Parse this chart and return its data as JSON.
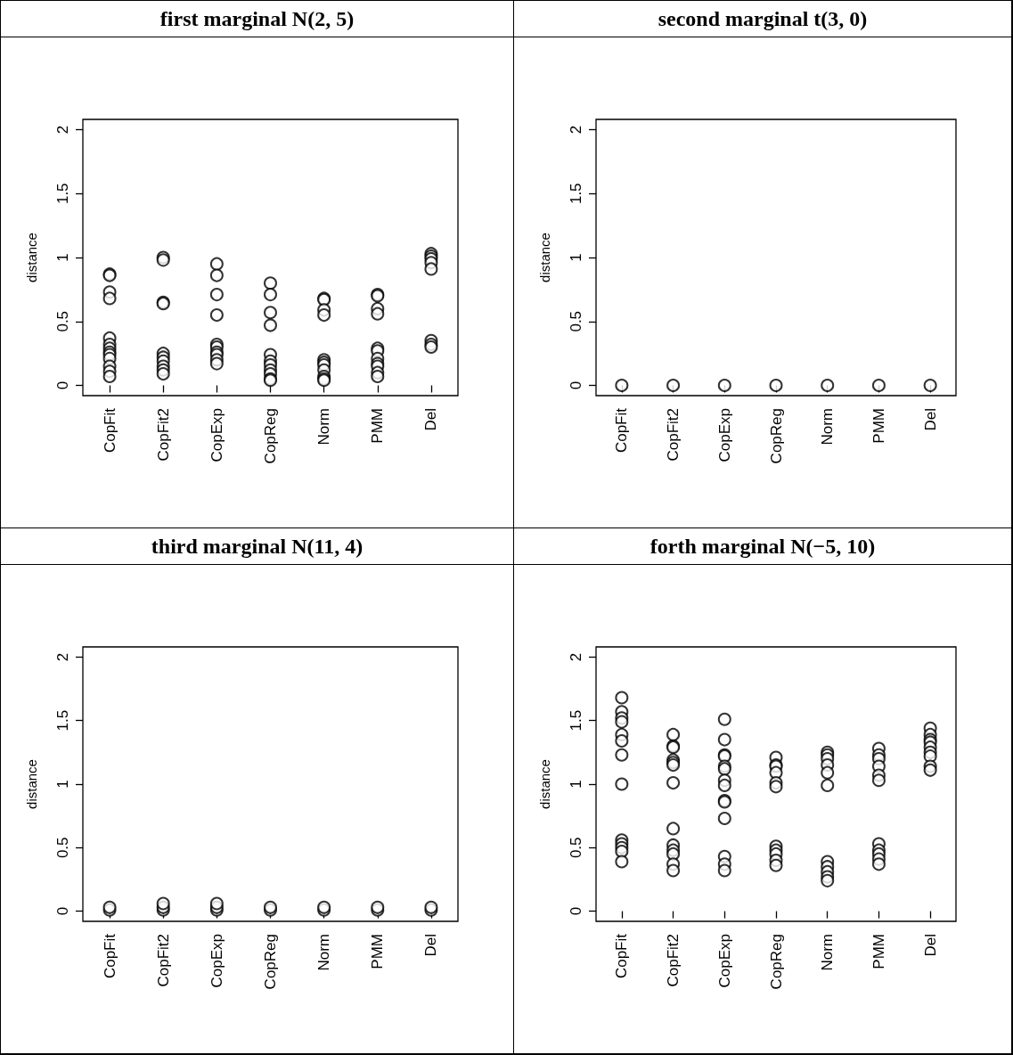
{
  "chart_data": [
    {
      "type": "scatter",
      "title": "first marginal N(2, 5)",
      "ylabel": "distance",
      "categories": [
        "CopFit",
        "CopFit2",
        "CopExp",
        "CopReg",
        "Norm",
        "PMM",
        "Del"
      ],
      "ylim": [
        -0.08,
        2.08
      ],
      "yticks": [
        0,
        0.5,
        1,
        1.5,
        2
      ],
      "marker": "circle",
      "series": [
        {
          "color": "#000000",
          "x": [
            "CopFit",
            "CopFit",
            "CopFit",
            "CopFit",
            "CopFit",
            "CopFit",
            "CopFit",
            "CopFit",
            "CopFit",
            "CopFit",
            "CopFit",
            "CopFit",
            "CopFit",
            "CopFit2",
            "CopFit2",
            "CopFit2",
            "CopFit2",
            "CopFit2",
            "CopFit2",
            "CopFit2",
            "CopFit2",
            "CopFit2",
            "CopFit2",
            "CopExp",
            "CopExp",
            "CopExp",
            "CopExp",
            "CopExp",
            "CopExp",
            "CopExp",
            "CopExp",
            "CopExp",
            "CopExp",
            "CopReg",
            "CopReg",
            "CopReg",
            "CopReg",
            "CopReg",
            "CopReg",
            "CopReg",
            "CopReg",
            "CopReg",
            "CopReg",
            "CopReg",
            "Norm",
            "Norm",
            "Norm",
            "Norm",
            "Norm",
            "Norm",
            "Norm",
            "Norm",
            "Norm",
            "Norm",
            "Norm",
            "PMM",
            "PMM",
            "PMM",
            "PMM",
            "PMM",
            "PMM",
            "PMM",
            "PMM",
            "PMM",
            "PMM",
            "PMM",
            "Del",
            "Del",
            "Del",
            "Del",
            "Del",
            "Del",
            "Del",
            "Del"
          ],
          "values": [
            0.87,
            0.86,
            0.73,
            0.68,
            0.37,
            0.32,
            0.29,
            0.26,
            0.24,
            0.21,
            0.15,
            0.11,
            0.07,
            1.0,
            0.98,
            0.65,
            0.64,
            0.25,
            0.22,
            0.19,
            0.15,
            0.12,
            0.09,
            0.95,
            0.86,
            0.71,
            0.55,
            0.32,
            0.3,
            0.26,
            0.24,
            0.2,
            0.17,
            0.8,
            0.71,
            0.57,
            0.47,
            0.24,
            0.19,
            0.16,
            0.12,
            0.09,
            0.05,
            0.04,
            0.68,
            0.67,
            0.59,
            0.55,
            0.2,
            0.18,
            0.16,
            0.12,
            0.07,
            0.05,
            0.04,
            0.71,
            0.7,
            0.6,
            0.56,
            0.29,
            0.27,
            0.21,
            0.17,
            0.15,
            0.1,
            0.07,
            1.03,
            1.01,
            0.99,
            0.96,
            0.91,
            0.35,
            0.32,
            0.3
          ]
        }
      ]
    },
    {
      "type": "scatter",
      "title": "second marginal t(3, 0)",
      "ylabel": "distance",
      "categories": [
        "CopFit",
        "CopFit2",
        "CopExp",
        "CopReg",
        "Norm",
        "PMM",
        "Del"
      ],
      "ylim": [
        -0.08,
        2.08
      ],
      "yticks": [
        0,
        0.5,
        1,
        1.5,
        2
      ],
      "marker": "circle",
      "series": [
        {
          "color": "#000000",
          "x": [
            "CopFit",
            "CopFit2",
            "CopExp",
            "CopReg",
            "Norm",
            "PMM",
            "Del"
          ],
          "values": [
            0,
            0,
            0,
            0,
            0,
            0,
            0
          ]
        }
      ]
    },
    {
      "type": "scatter",
      "title": "third marginal N(11, 4)",
      "ylabel": "distance",
      "categories": [
        "CopFit",
        "CopFit2",
        "CopExp",
        "CopReg",
        "Norm",
        "PMM",
        "Del"
      ],
      "ylim": [
        -0.08,
        2.08
      ],
      "yticks": [
        0,
        0.5,
        1,
        1.5,
        2
      ],
      "marker": "circle",
      "series": [
        {
          "color": "#000000",
          "x": [
            "CopFit",
            "CopFit",
            "CopFit2",
            "CopFit2",
            "CopFit2",
            "CopExp",
            "CopExp",
            "CopExp",
            "CopReg",
            "CopReg",
            "Norm",
            "Norm",
            "PMM",
            "PMM",
            "Del",
            "Del"
          ],
          "values": [
            0.01,
            0.03,
            0.01,
            0.03,
            0.06,
            0.01,
            0.03,
            0.06,
            0.01,
            0.03,
            0.01,
            0.03,
            0.01,
            0.03,
            0.01,
            0.03
          ]
        }
      ]
    },
    {
      "type": "scatter",
      "title": "forth marginal N(−5, 10)",
      "ylabel": "distance",
      "categories": [
        "CopFit",
        "CopFit2",
        "CopExp",
        "CopReg",
        "Norm",
        "PMM",
        "Del"
      ],
      "ylim": [
        -0.08,
        2.08
      ],
      "yticks": [
        0,
        0.5,
        1,
        1.5,
        2
      ],
      "marker": "circle",
      "series": [
        {
          "color": "#000000",
          "x": [
            "CopFit",
            "CopFit",
            "CopFit",
            "CopFit",
            "CopFit",
            "CopFit",
            "CopFit",
            "CopFit",
            "CopFit",
            "CopFit",
            "CopFit",
            "CopFit",
            "CopFit",
            "CopFit2",
            "CopFit2",
            "CopFit2",
            "CopFit2",
            "CopFit2",
            "CopFit2",
            "CopFit2",
            "CopFit2",
            "CopFit2",
            "CopFit2",
            "CopFit2",
            "CopFit2",
            "CopFit2",
            "CopExp",
            "CopExp",
            "CopExp",
            "CopExp",
            "CopExp",
            "CopExp",
            "CopExp",
            "CopExp",
            "CopExp",
            "CopExp",
            "CopExp",
            "CopExp",
            "CopExp",
            "CopExp",
            "CopReg",
            "CopReg",
            "CopReg",
            "CopReg",
            "CopReg",
            "CopReg",
            "CopReg",
            "CopReg",
            "CopReg",
            "CopReg",
            "CopReg",
            "Norm",
            "Norm",
            "Norm",
            "Norm",
            "Norm",
            "Norm",
            "Norm",
            "Norm",
            "Norm",
            "Norm",
            "Norm",
            "PMM",
            "PMM",
            "PMM",
            "PMM",
            "PMM",
            "PMM",
            "PMM",
            "PMM",
            "PMM",
            "PMM",
            "PMM",
            "Del",
            "Del",
            "Del",
            "Del",
            "Del",
            "Del",
            "Del",
            "Del",
            "Del"
          ],
          "values": [
            1.68,
            1.57,
            1.52,
            1.49,
            1.39,
            1.34,
            1.23,
            1.0,
            0.56,
            0.53,
            0.5,
            0.47,
            0.39,
            1.39,
            1.3,
            1.29,
            1.19,
            1.17,
            1.15,
            1.01,
            0.65,
            0.52,
            0.48,
            0.45,
            0.37,
            0.32,
            1.51,
            1.35,
            1.23,
            1.22,
            1.14,
            1.12,
            1.03,
            0.99,
            0.87,
            0.86,
            0.73,
            0.43,
            0.37,
            0.32,
            1.21,
            1.15,
            1.14,
            1.09,
            1.01,
            0.98,
            0.51,
            0.48,
            0.45,
            0.4,
            0.36,
            1.25,
            1.23,
            1.2,
            1.15,
            1.09,
            0.99,
            0.39,
            0.35,
            0.31,
            0.27,
            0.24,
            1.28,
            1.23,
            1.2,
            1.14,
            1.07,
            1.03,
            0.53,
            0.48,
            0.45,
            0.41,
            0.37,
            1.44,
            1.39,
            1.35,
            1.33,
            1.29,
            1.25,
            1.22,
            1.14,
            1.11
          ]
        }
      ]
    }
  ]
}
